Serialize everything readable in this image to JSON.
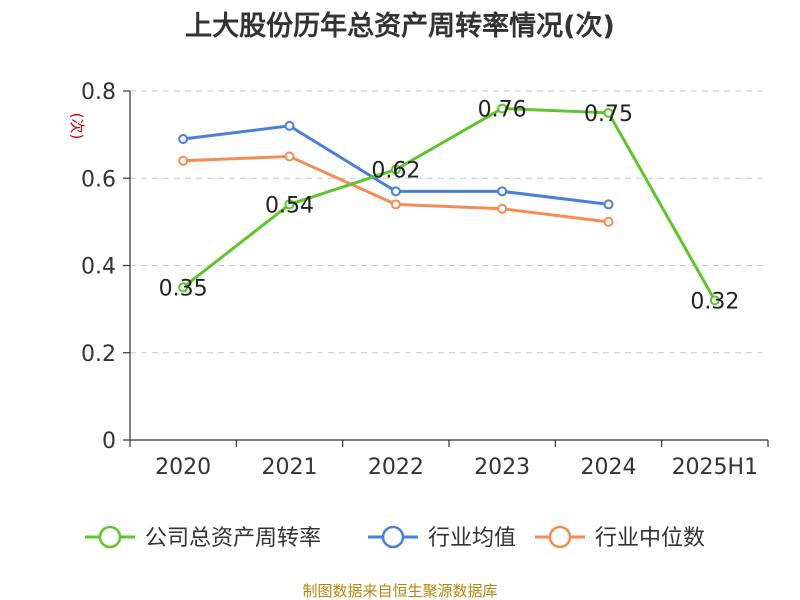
{
  "chart_data": {
    "type": "line",
    "title": "上大股份历年总资产周转率情况(次)",
    "ylabel": "(次)",
    "categories": [
      "2020",
      "2021",
      "2022",
      "2023",
      "2024",
      "2025H1"
    ],
    "ylim": [
      0,
      0.8
    ],
    "yticks": [
      0,
      0.2,
      0.4,
      0.6,
      0.8
    ],
    "ytick_labels": [
      "0",
      "0.2",
      "0.4",
      "0.6",
      "0.8"
    ],
    "grid": true,
    "legend_position": "bottom",
    "series": [
      {
        "name": "公司总资产周转率",
        "color": "#5cc72a",
        "values": [
          0.35,
          0.54,
          0.62,
          0.76,
          0.75,
          0.32
        ],
        "data_labels": [
          "0.35",
          "0.54",
          "0.62",
          "0.76",
          "0.75",
          "0.32"
        ]
      },
      {
        "name": "行业均值",
        "color": "#4a7fdc",
        "values": [
          0.69,
          0.72,
          0.57,
          0.57,
          0.54,
          null
        ]
      },
      {
        "name": "行业中位数",
        "color": "#f58c55",
        "values": [
          0.64,
          0.65,
          0.54,
          0.53,
          0.5,
          null
        ]
      }
    ]
  },
  "source": "制图数据来自恒生聚源数据库"
}
